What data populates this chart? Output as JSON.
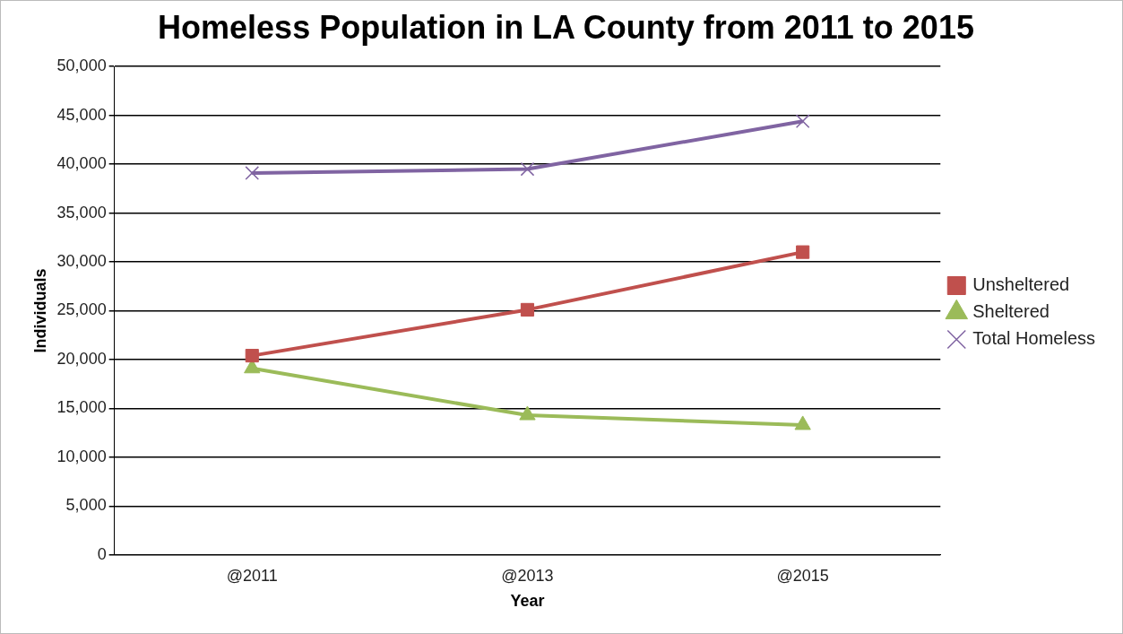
{
  "chart_data": {
    "type": "line",
    "title": "Homeless Population in LA County from 2011 to 2015",
    "xlabel": "Year",
    "ylabel": "Individuals",
    "categories": [
      "@2011",
      "@2013",
      "@2015"
    ],
    "series": [
      {
        "name": "Unsheltered",
        "color": "#c0504d",
        "marker": "square",
        "values": [
          20400,
          25100,
          31000
        ]
      },
      {
        "name": "Sheltered",
        "color": "#9bbb59",
        "marker": "triangle",
        "values": [
          19100,
          14300,
          13300
        ]
      },
      {
        "name": "Total Homeless",
        "color": "#8064a2",
        "marker": "cross",
        "values": [
          39100,
          39500,
          44400
        ]
      }
    ],
    "ylim": [
      0,
      50000
    ],
    "yticks": [
      {
        "value": 0,
        "label": "0"
      },
      {
        "value": 5000,
        "label": "5,000"
      },
      {
        "value": 10000,
        "label": "10,000"
      },
      {
        "value": 15000,
        "label": "15,000"
      },
      {
        "value": 20000,
        "label": "20,000"
      },
      {
        "value": 25000,
        "label": "25,000"
      },
      {
        "value": 30000,
        "label": "30,000"
      },
      {
        "value": 35000,
        "label": "35,000"
      },
      {
        "value": 40000,
        "label": "40,000"
      },
      {
        "value": 45000,
        "label": "45,000"
      },
      {
        "value": 50000,
        "label": "50,000"
      }
    ],
    "grid": "y",
    "legend": "right"
  }
}
